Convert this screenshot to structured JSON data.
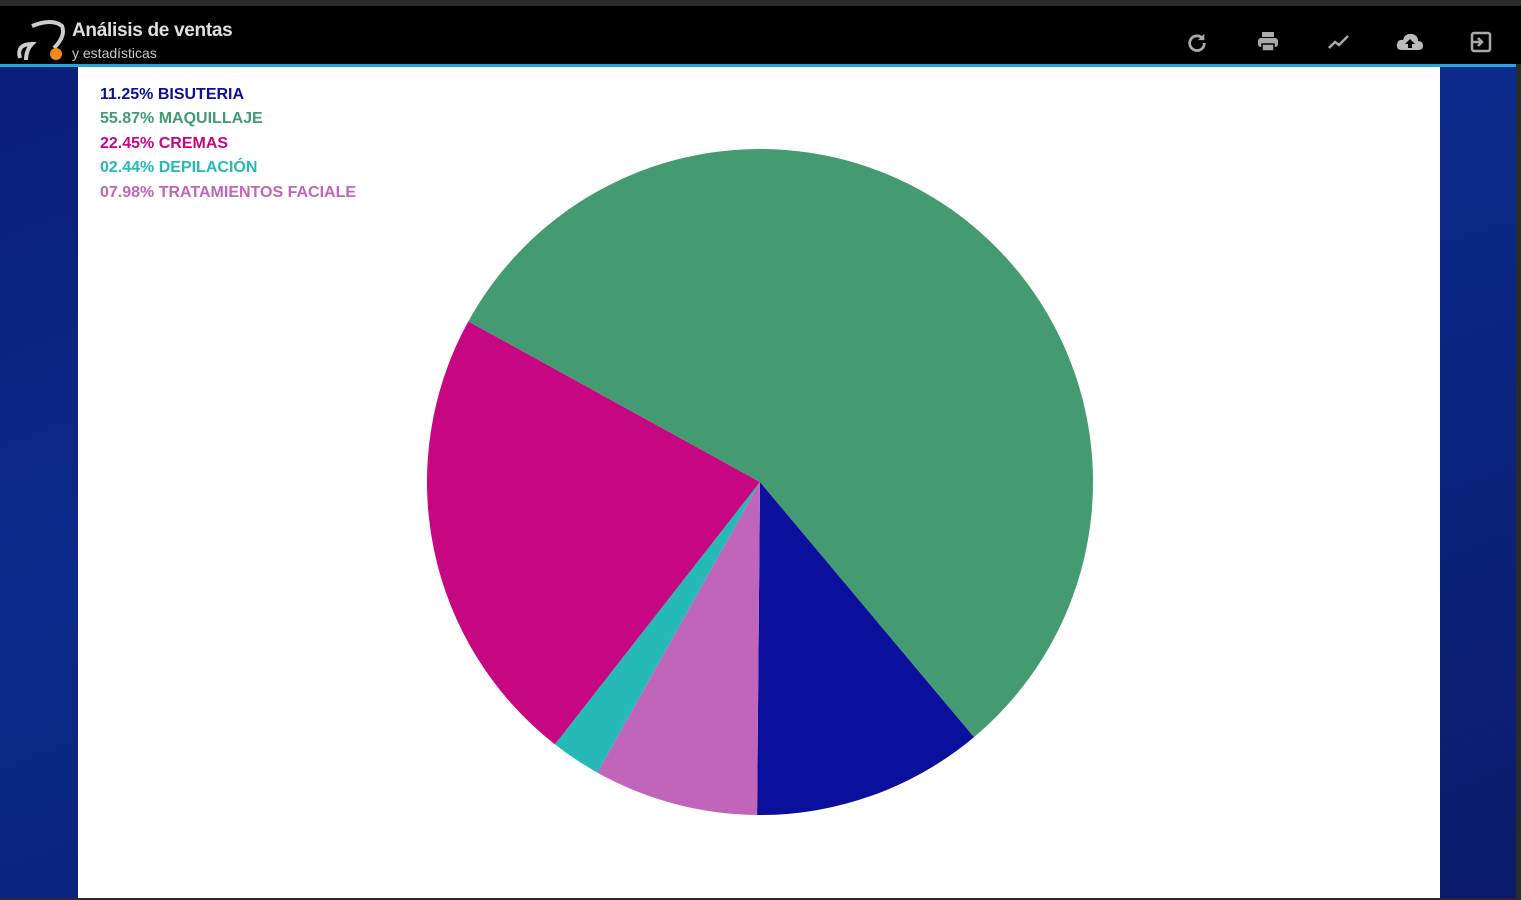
{
  "header": {
    "title": "Análisis de ventas",
    "subtitle": "y estadísticas",
    "toolbar": [
      {
        "icon": "refresh-icon"
      },
      {
        "icon": "print-icon"
      },
      {
        "icon": "trend-icon"
      },
      {
        "icon": "cloud-upload-icon"
      },
      {
        "icon": "exit-icon"
      }
    ]
  },
  "chart_data": {
    "type": "pie",
    "legend_placement": "top-left",
    "slices": [
      {
        "label": "BISUTERIA",
        "value": 11.25,
        "display": "11.25% BISUTERIA",
        "color": "#0a0f9c"
      },
      {
        "label": "MAQUILLAJE",
        "value": 55.87,
        "display": "55.87% MAQUILLAJE",
        "color": "#449b71"
      },
      {
        "label": "CREMAS",
        "value": 22.45,
        "display": "22.45% CREMAS",
        "color": "#c70682"
      },
      {
        "label": "DEPILACIÓN",
        "value": 2.44,
        "display": "02.44% DEPILACIÓN",
        "color": "#25b9b7"
      },
      {
        "label": "TRATAMIENTOS FACIALE",
        "value": 7.98,
        "display": "07.98% TRATAMIENTOS FACIALE",
        "color": "#c065b9"
      }
    ]
  }
}
